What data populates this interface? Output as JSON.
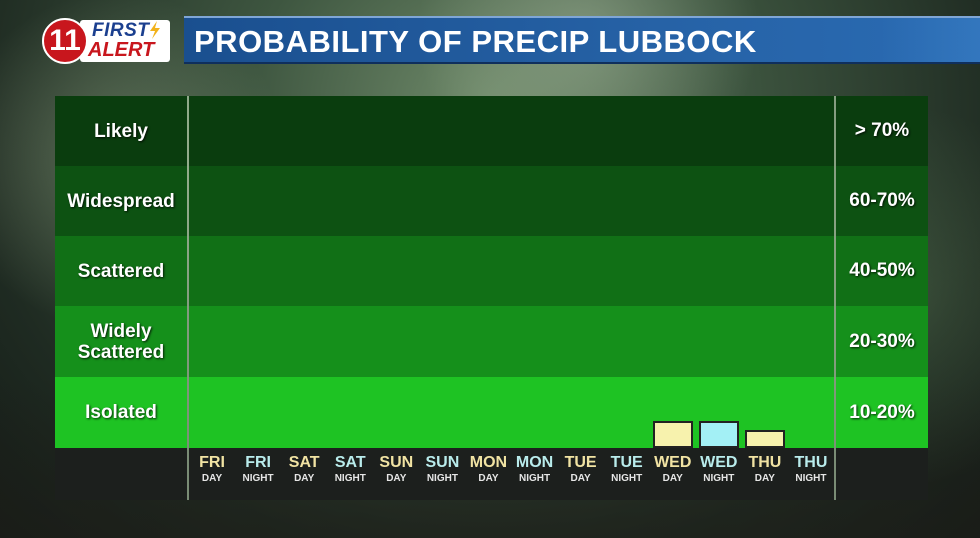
{
  "logo": {
    "number": "11",
    "top": "FIRST",
    "bottom": "ALERT"
  },
  "title": "PROBABILITY OF PRECIP LUBBOCK",
  "colors": {
    "likely": "#0a3d0e",
    "widespread": "#0d5212",
    "scattered": "#117016",
    "widely_scattered": "#15901b",
    "isolated": "#1ec323",
    "day_tick": "#f1e3a3",
    "night_tick": "#b9ecec",
    "day_bar": "#f7f2ad",
    "night_bar": "#a3f0f5"
  },
  "chart_data": {
    "type": "bar",
    "title": "PROBABILITY OF PRECIP LUBBOCK",
    "y_categories": [
      {
        "label": "Likely",
        "range": "> 70%"
      },
      {
        "label": "Widespread",
        "range": "60-70%"
      },
      {
        "label": "Scattered",
        "range": "40-50%"
      },
      {
        "label": "Widely Scattered",
        "range": "20-30%"
      },
      {
        "label": "Isolated",
        "range": "10-20%"
      }
    ],
    "categories": [
      {
        "day": "FRI",
        "period": "DAY"
      },
      {
        "day": "FRI",
        "period": "NIGHT"
      },
      {
        "day": "SAT",
        "period": "DAY"
      },
      {
        "day": "SAT",
        "period": "NIGHT"
      },
      {
        "day": "SUN",
        "period": "DAY"
      },
      {
        "day": "SUN",
        "period": "NIGHT"
      },
      {
        "day": "MON",
        "period": "DAY"
      },
      {
        "day": "MON",
        "period": "NIGHT"
      },
      {
        "day": "TUE",
        "period": "DAY"
      },
      {
        "day": "TUE",
        "period": "NIGHT"
      },
      {
        "day": "WED",
        "period": "DAY"
      },
      {
        "day": "WED",
        "period": "NIGHT"
      },
      {
        "day": "THU",
        "period": "DAY"
      },
      {
        "day": "THU",
        "period": "NIGHT"
      }
    ],
    "values": [
      0,
      0,
      0,
      0,
      0,
      0,
      0,
      0,
      0,
      0,
      15,
      15,
      10,
      0
    ],
    "ylim": [
      0,
      100
    ]
  }
}
